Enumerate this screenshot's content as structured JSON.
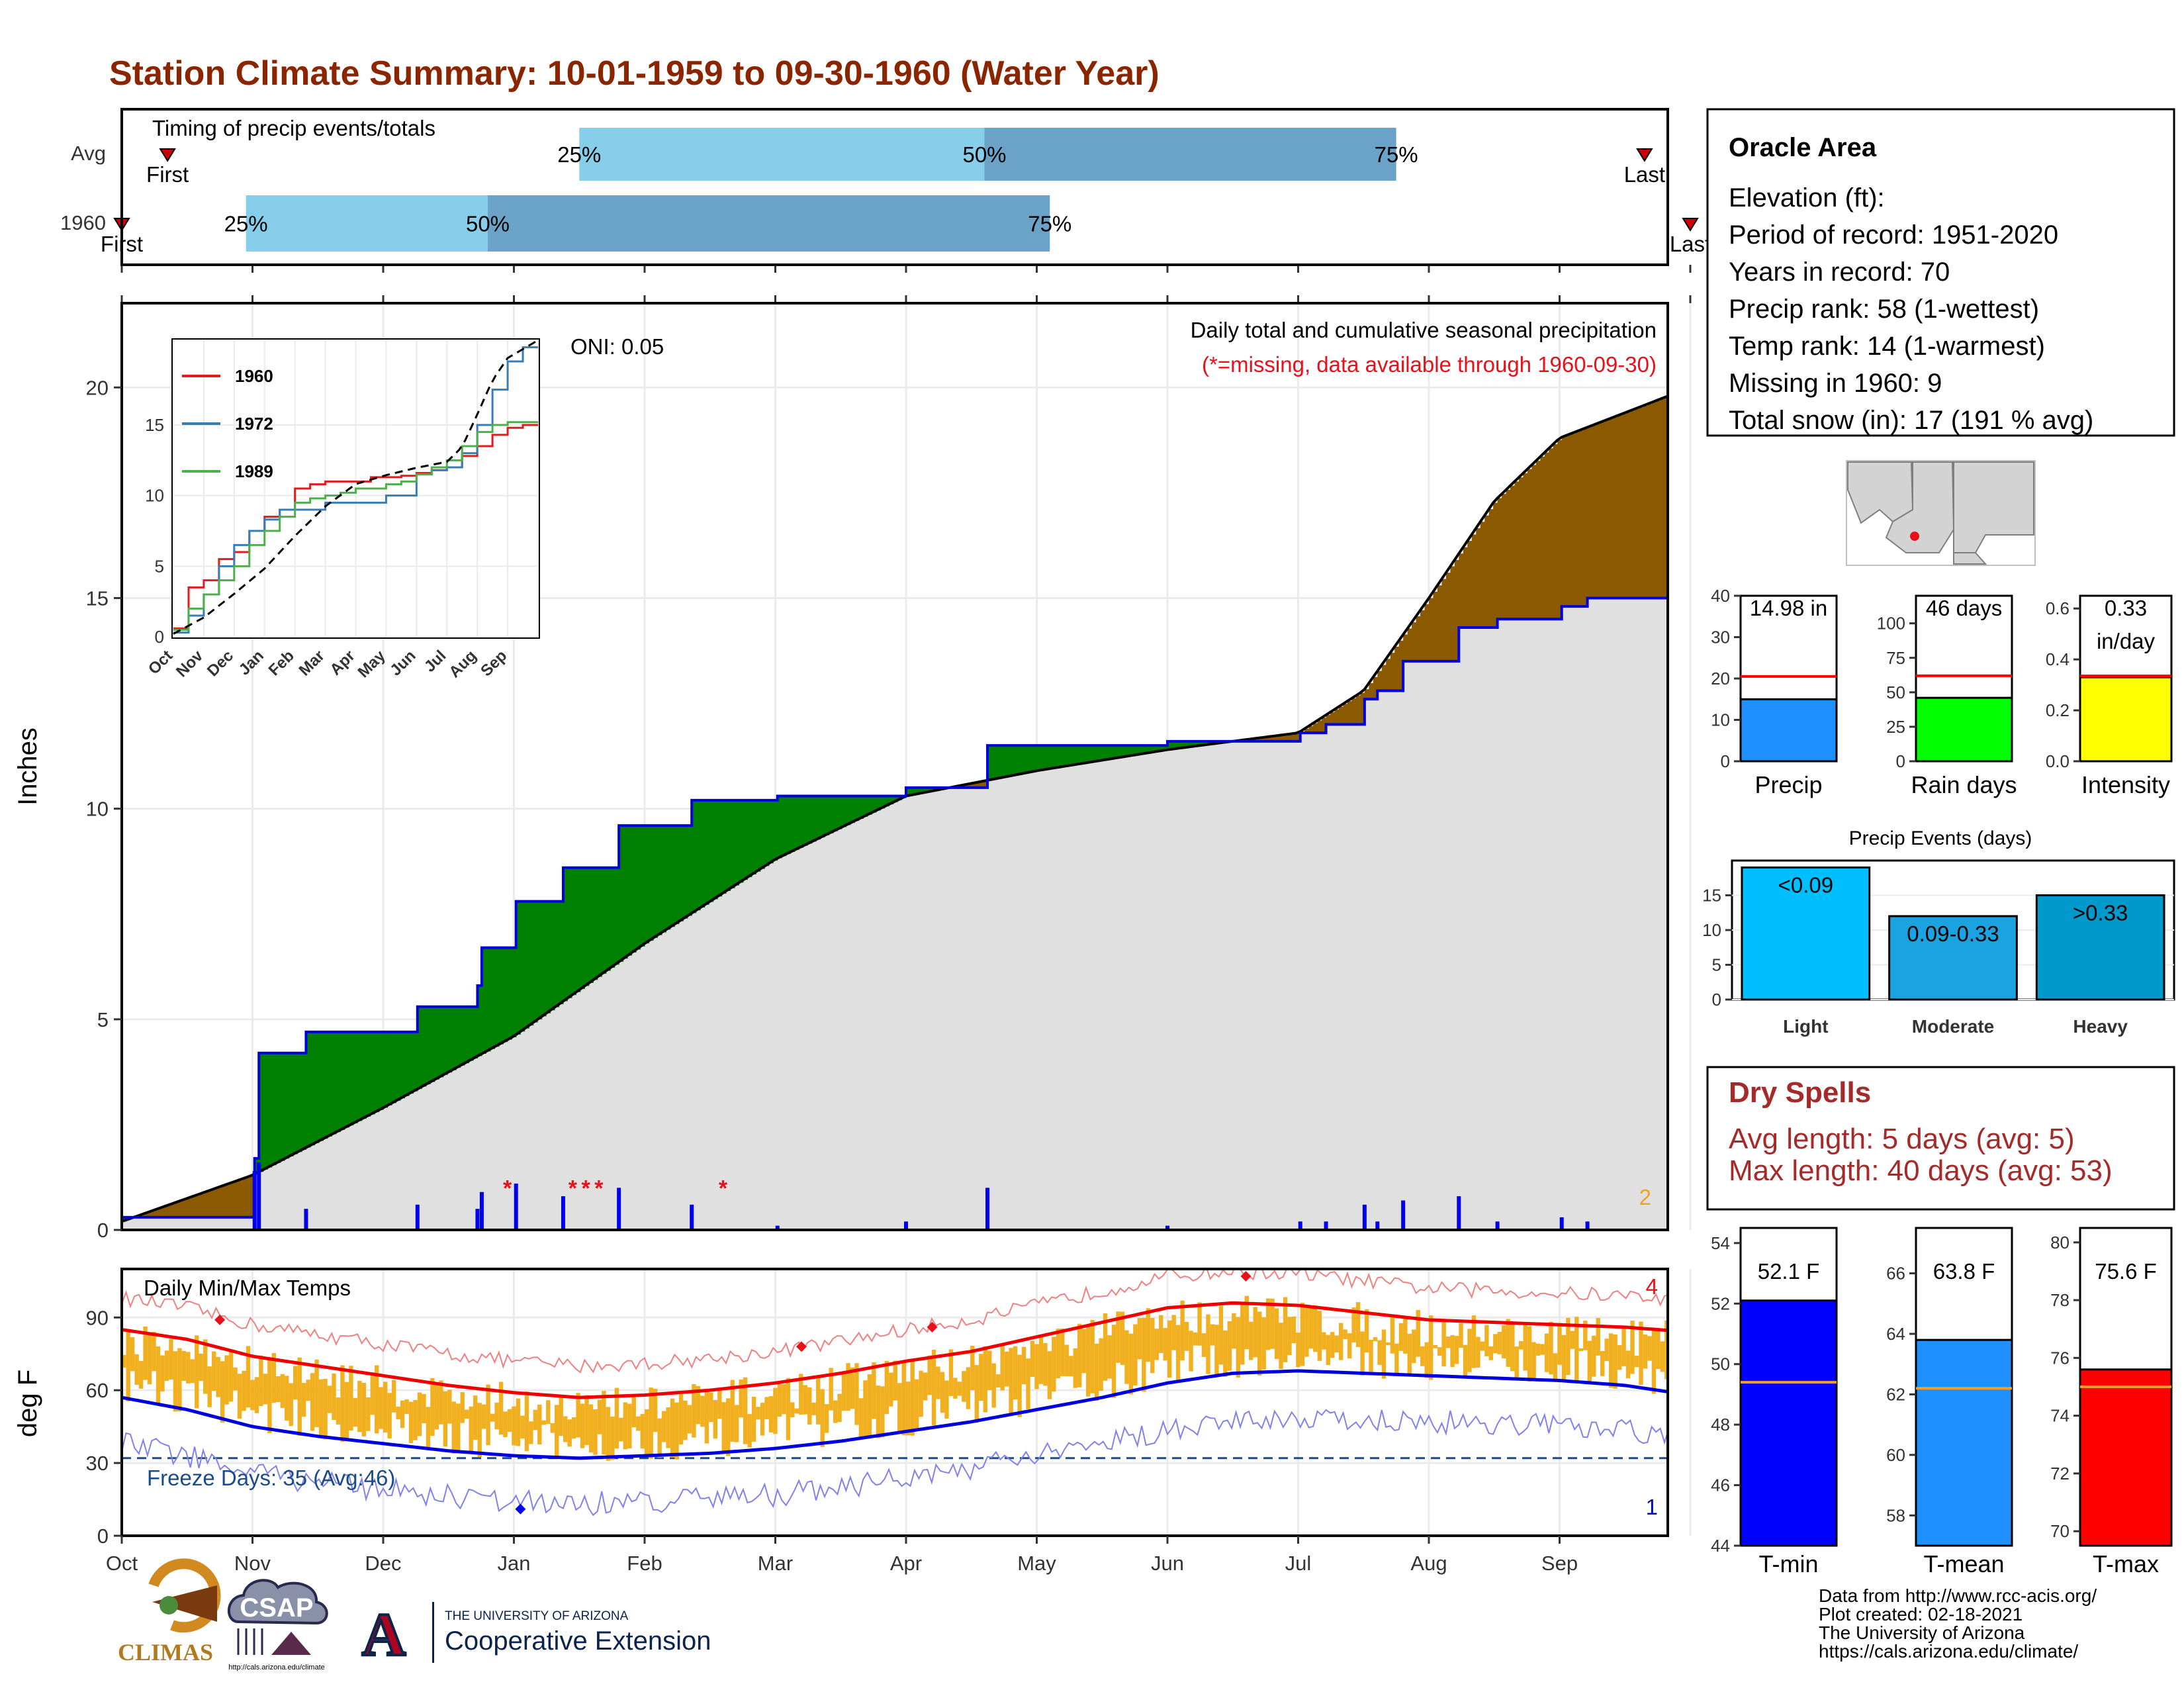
{
  "title": "Station Climate Summary: 10-01-1959 to 09-30-1960 (Water Year)",
  "timing": {
    "label": "Timing of precip events/totals",
    "rows": [
      {
        "name": "Avg",
        "first_label": "First",
        "last_label": "Last",
        "first_month": 0.35,
        "last_month": 11.65,
        "q25_label": "25%",
        "q50_label": "50%",
        "q75_label": "75%",
        "q25": 3.5,
        "q50": 6.6,
        "q75": 9.75
      },
      {
        "name": "1960",
        "first_label": "First",
        "last_label": "Last",
        "first_month": 0.0,
        "last_month": 12.0,
        "q25_label": "25%",
        "q50_label": "50%",
        "q75_label": "75%",
        "q25": 0.95,
        "q50": 2.8,
        "q75": 7.1
      }
    ],
    "colors": {
      "light": "#87ceeb",
      "dark": "#6ba3c8",
      "marker": "#cc0000"
    }
  },
  "precip_panel": {
    "ylabel": "Inches",
    "oni_label": "ONI: 0.05",
    "caption": "Daily total and cumulative seasonal precipitation",
    "missing_note": "(*=missing, data available through 1960-09-30)",
    "corner_count": "2",
    "ylim": [
      0,
      22
    ],
    "yticks": [
      "0",
      "5",
      "10",
      "15",
      "20"
    ],
    "colors": {
      "surplus": "#008000",
      "deficit": "#8b5a00",
      "base": "#e0e0e0",
      "line": "#0000dd"
    }
  },
  "inset": {
    "yticks": [
      "0",
      "5",
      "10",
      "15"
    ],
    "months": [
      "Oct",
      "Nov",
      "Dec",
      "Jan",
      "Feb",
      "Mar",
      "Apr",
      "May",
      "Jun",
      "Jul",
      "Aug",
      "Sep"
    ],
    "series": [
      {
        "name": "1960",
        "color": "#e41a1c"
      },
      {
        "name": "1972",
        "color": "#377eb8"
      },
      {
        "name": "1989",
        "color": "#4daf4a"
      }
    ]
  },
  "temp_panel": {
    "ylabel": "deg F",
    "label": "Daily Min/Max Temps",
    "freeze_label": "Freeze Days: 35 (Avg:46)",
    "top_count": "4",
    "bottom_count": "1",
    "ylim": [
      0,
      110
    ],
    "yticks": [
      "0",
      "30",
      "60",
      "90"
    ],
    "colors": {
      "bars": "#f0b020",
      "max": "#ee0000",
      "min": "#0000dd",
      "freeze": "#1a4b8c"
    }
  },
  "months": [
    "Oct",
    "Nov",
    "Dec",
    "Jan",
    "Feb",
    "Mar",
    "Apr",
    "May",
    "Jun",
    "Jul",
    "Aug",
    "Sep"
  ],
  "info_box": {
    "station": "Oracle Area",
    "lines": [
      "Elevation (ft):",
      "Period of record: 1951-2020",
      "Years in record: 70",
      "Precip rank: 58 (1-wettest)",
      "Temp rank: 14 (1-warmest)",
      "Missing in 1960: 9",
      "Total snow (in): 17 (191 % avg)"
    ]
  },
  "map": {
    "description_label": ""
  },
  "summary_bars": [
    {
      "name": "Precip",
      "value_label": "14.98 in",
      "value": 14.98,
      "avg": 20.5,
      "ymax": 40,
      "yticks": [
        "0",
        "10",
        "20",
        "30",
        "40"
      ],
      "color": "#1e90ff"
    },
    {
      "name": "Rain days",
      "value_label": "46 days",
      "value": 46,
      "avg": 62,
      "ymax": 120,
      "yticks": [
        "0",
        "25",
        "50",
        "75",
        "100"
      ],
      "color": "#00ff00"
    },
    {
      "name": "Intensity",
      "value_label": "0.33",
      "value_label2": "in/day",
      "value": 0.33,
      "avg": 0.335,
      "ymax": 0.65,
      "yticks": [
        "0.0",
        "0.2",
        "0.4",
        "0.6"
      ],
      "color": "#ffff00"
    }
  ],
  "precip_events": {
    "title": "Precip Events (days)",
    "yticks": [
      "0",
      "5",
      "10",
      "15"
    ],
    "ymax": 20,
    "bars": [
      {
        "category": "Light",
        "label": "<0.09",
        "value": 19,
        "color": "#00bfff"
      },
      {
        "category": "Moderate",
        "label": "0.09-0.33",
        "value": 12,
        "color": "#1aa3e0"
      },
      {
        "category": "Heavy",
        "label": ">0.33",
        "value": 15,
        "color": "#0099cc"
      }
    ]
  },
  "dry_spells": {
    "title": "Dry Spells",
    "avg_line": "Avg length: 5 days (avg: 5)",
    "max_line": "Max length: 40 days (avg: 53)"
  },
  "temp_bars": [
    {
      "name": "T-min",
      "value_label": "52.1 F",
      "value": 52.1,
      "avg": 49.4,
      "ymin": 44,
      "ymax": 54.5,
      "yticks": [
        "44",
        "46",
        "48",
        "50",
        "52",
        "54"
      ],
      "color": "#0000ff"
    },
    {
      "name": "T-mean",
      "value_label": "63.8 F",
      "value": 63.8,
      "avg": 62.2,
      "ymin": 57,
      "ymax": 67.5,
      "yticks": [
        "58",
        "60",
        "62",
        "64",
        "66"
      ],
      "color": "#1e90ff"
    },
    {
      "name": "T-max",
      "value_label": "75.6 F",
      "value": 75.6,
      "avg": 75.0,
      "ymin": 69.5,
      "ymax": 80.5,
      "yticks": [
        "70",
        "72",
        "74",
        "76",
        "78",
        "80"
      ],
      "color": "#ff0000"
    }
  ],
  "credits": {
    "lines": [
      "Data from http://www.rcc-acis.org/",
      "Plot created: 02-18-2021",
      "The University of Arizona",
      "https://cals.arizona.edu/climate/"
    ]
  },
  "logos": {
    "climas": "CLIMAS",
    "csap": "CSAP",
    "csap_url": "http://cals.arizona.edu/climate",
    "ua_letter": "A",
    "ua_small": "THE UNIVERSITY OF ARIZONA",
    "ua_big": "Cooperative Extension"
  },
  "chart_data": {
    "type": "area",
    "x_unit": "month index from Oct 1 1959",
    "series": [
      {
        "name": "1960",
        "description": "cumulative precipitation (in)",
        "x": [
          0,
          0.5,
          1.0,
          1.02,
          1.4,
          2.2,
          2.25,
          2.7,
          2.75,
          3.0,
          3.35,
          3.8,
          4.35,
          5.0,
          6.0,
          6.5,
          6.6,
          7.0,
          8.0,
          8.5,
          9.0,
          9.2,
          9.5,
          9.6,
          9.8,
          10.2,
          10.5,
          11.0,
          11.2,
          12.0
        ],
        "y": [
          0.3,
          0.3,
          1.7,
          4.2,
          4.7,
          4.7,
          5.3,
          5.8,
          6.7,
          7.8,
          8.6,
          9.6,
          10.2,
          10.3,
          10.5,
          10.5,
          11.5,
          11.5,
          11.6,
          11.6,
          11.8,
          12.0,
          12.6,
          12.8,
          13.5,
          14.3,
          14.5,
          14.8,
          15.0,
          15.0
        ]
      },
      {
        "name": "Average",
        "description": "average cumulative precipitation (in)",
        "x": [
          0,
          1,
          2,
          3,
          4,
          5,
          6,
          7,
          8,
          9,
          9.5,
          10,
          10.5,
          11,
          11.5,
          12
        ],
        "y": [
          0.2,
          1.3,
          2.9,
          4.6,
          6.8,
          8.8,
          10.3,
          10.9,
          11.4,
          11.8,
          12.8,
          15.0,
          17.3,
          18.8,
          19.4,
          20.0
        ]
      }
    ],
    "temperature": {
      "x": [
        0,
        0.5,
        1,
        1.5,
        2,
        2.5,
        3,
        3.5,
        4,
        4.5,
        5,
        5.5,
        6,
        6.5,
        7,
        7.5,
        8,
        8.5,
        9,
        9.5,
        10,
        10.5,
        11,
        11.5,
        12
      ],
      "avg_max": [
        85,
        81,
        74,
        70,
        66,
        62,
        59,
        57,
        58,
        60,
        63,
        67,
        72,
        76,
        82,
        88,
        94,
        96,
        95,
        92,
        89,
        88,
        87,
        86,
        84
      ],
      "avg_min": [
        57,
        52,
        45,
        41,
        38,
        35,
        33,
        32,
        33,
        34,
        36,
        39,
        43,
        47,
        52,
        57,
        63,
        67,
        68,
        67,
        66,
        65,
        64,
        62,
        58
      ],
      "ylim": [
        0,
        110
      ]
    },
    "xlabel": "",
    "ylabel": "Inches"
  }
}
